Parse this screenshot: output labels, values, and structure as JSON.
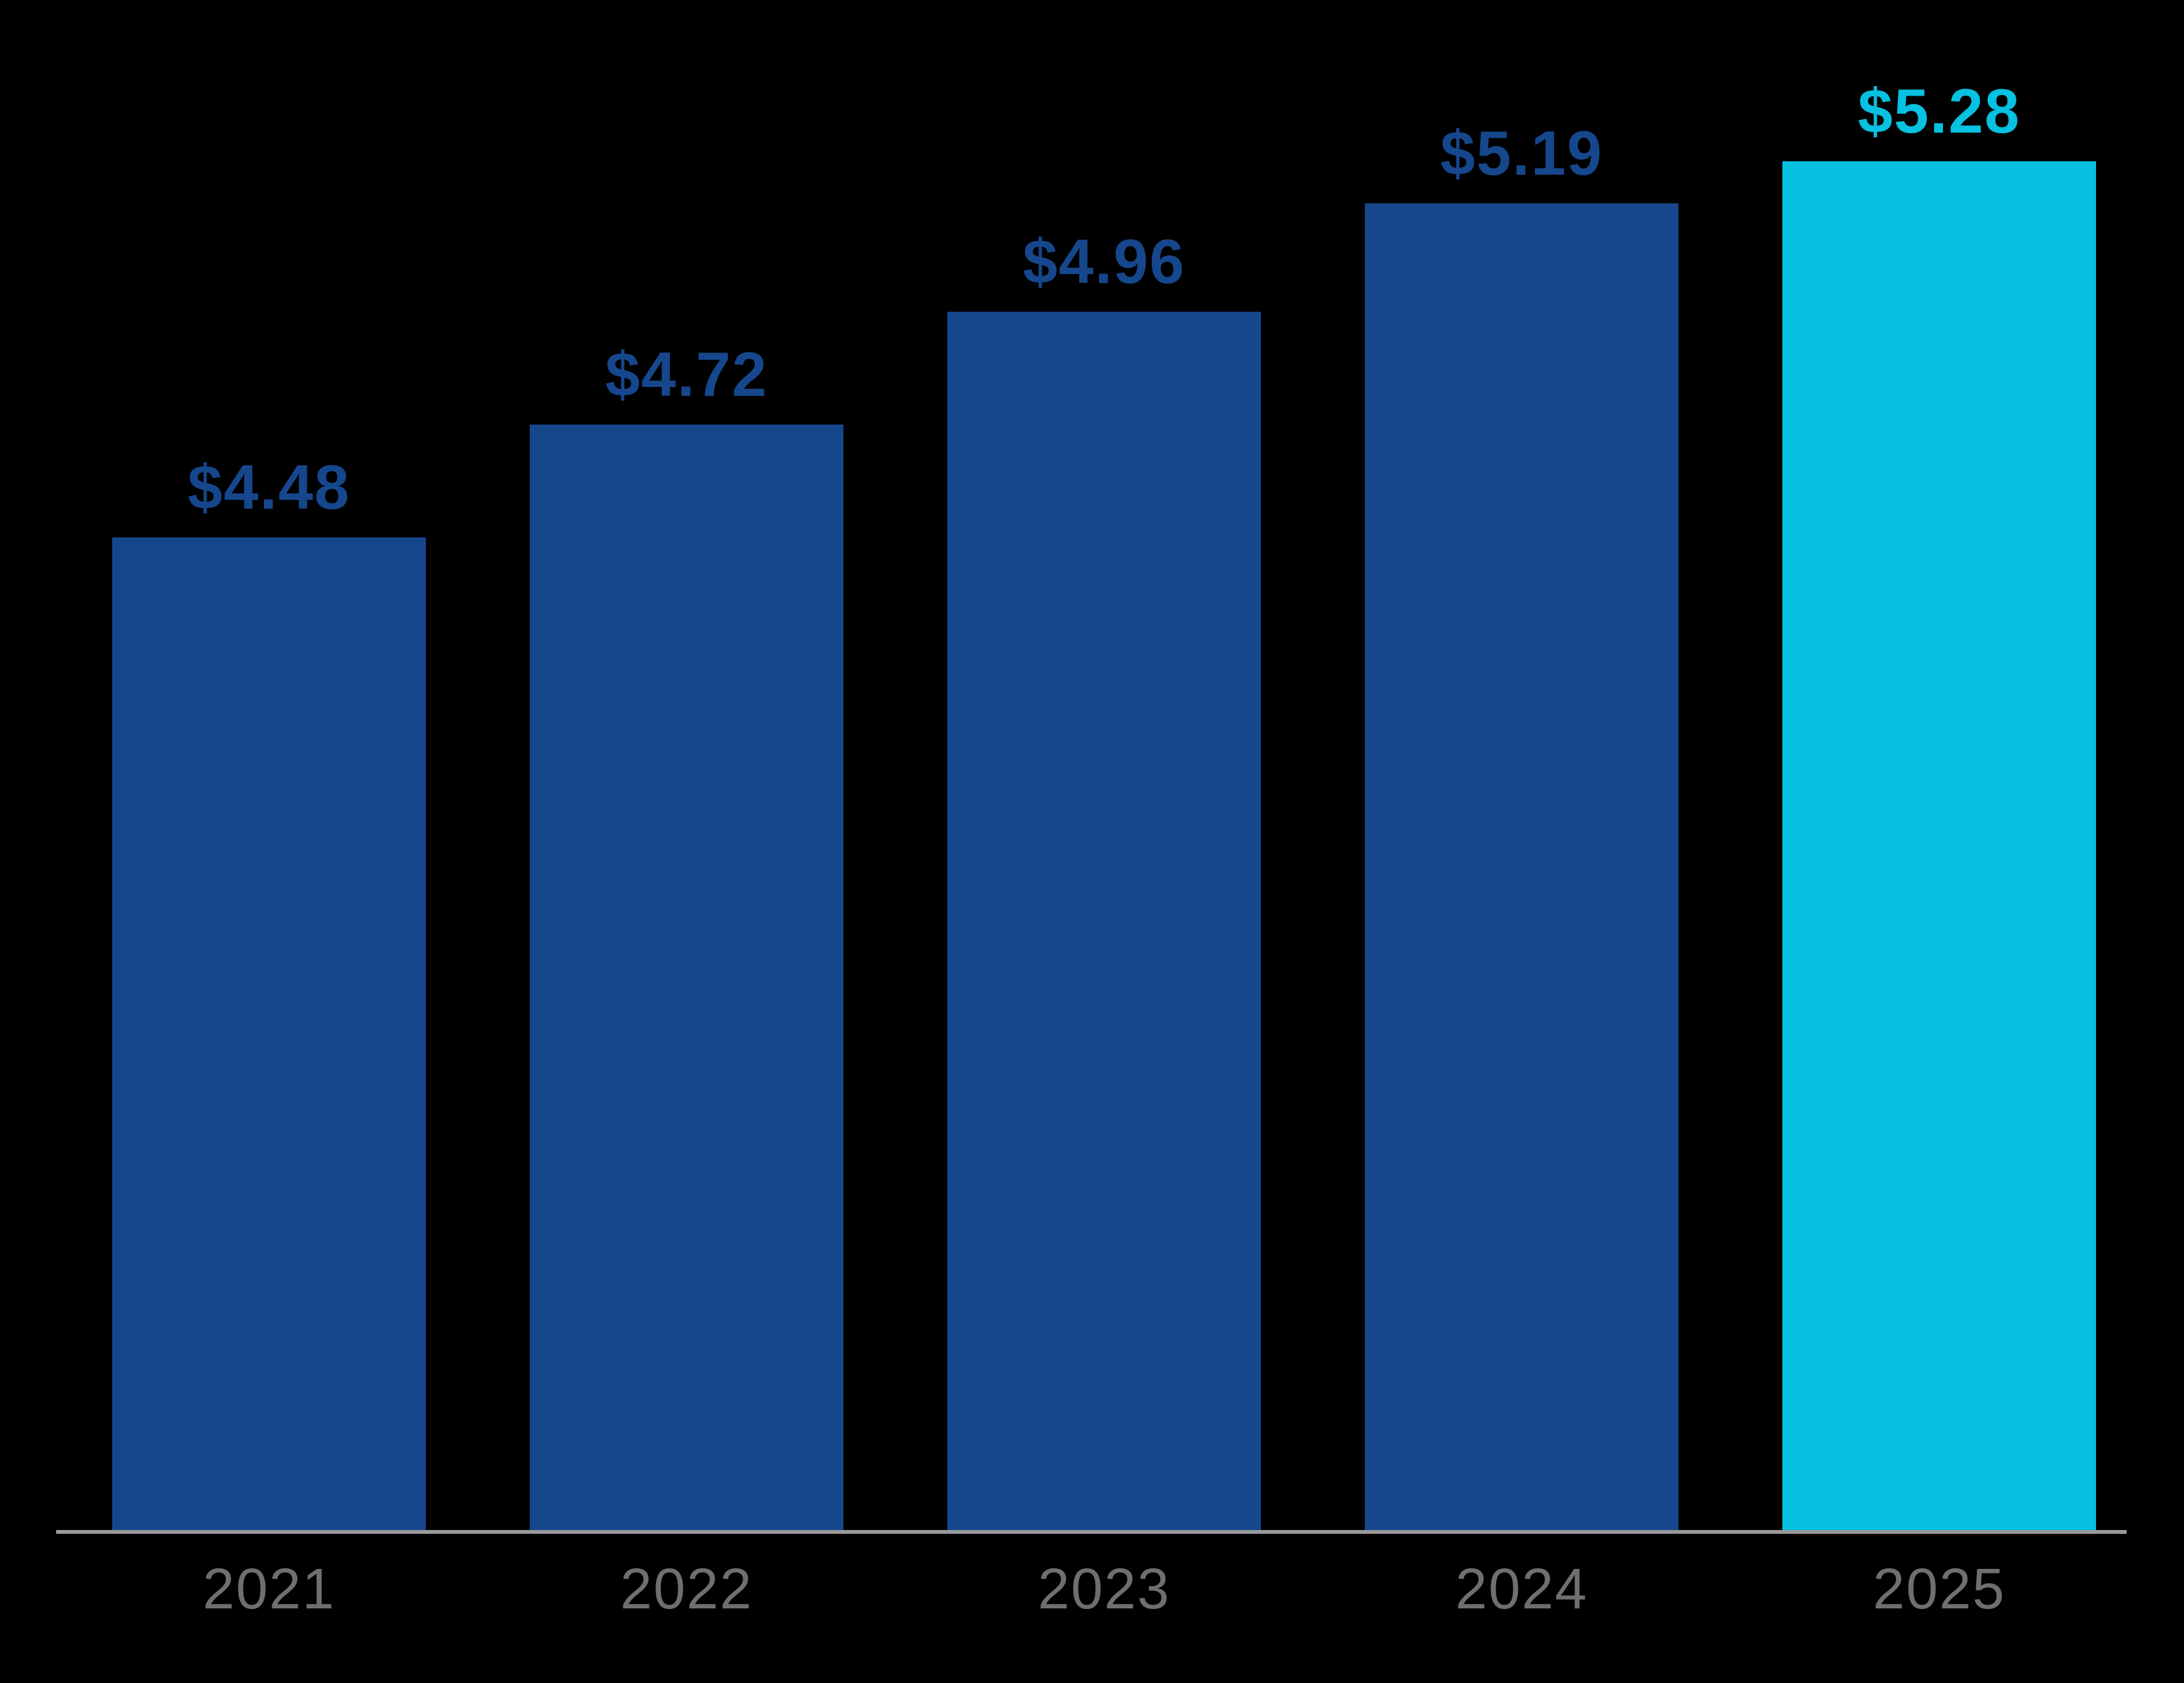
{
  "chart_data": {
    "type": "bar",
    "categories": [
      "2021",
      "2022",
      "2023",
      "2024",
      "2025"
    ],
    "values": [
      4.48,
      4.72,
      4.96,
      5.19,
      5.28
    ],
    "labels": [
      "$4.48",
      "$4.72",
      "$4.96",
      "$5.19",
      "$5.28"
    ],
    "title": "",
    "xlabel": "",
    "ylabel": "",
    "ylim": [
      2.37,
      5.28
    ],
    "grid": false,
    "legend": "none",
    "highlight_index": 4
  },
  "colors": {
    "background": "#000000",
    "bar": "#16478D",
    "bar_highlight": "#06C1E0",
    "value_label": "#16478D",
    "value_label_highlight": "#06C1E0",
    "axis_line": "#98999A",
    "year_label": "#6E6F70"
  }
}
